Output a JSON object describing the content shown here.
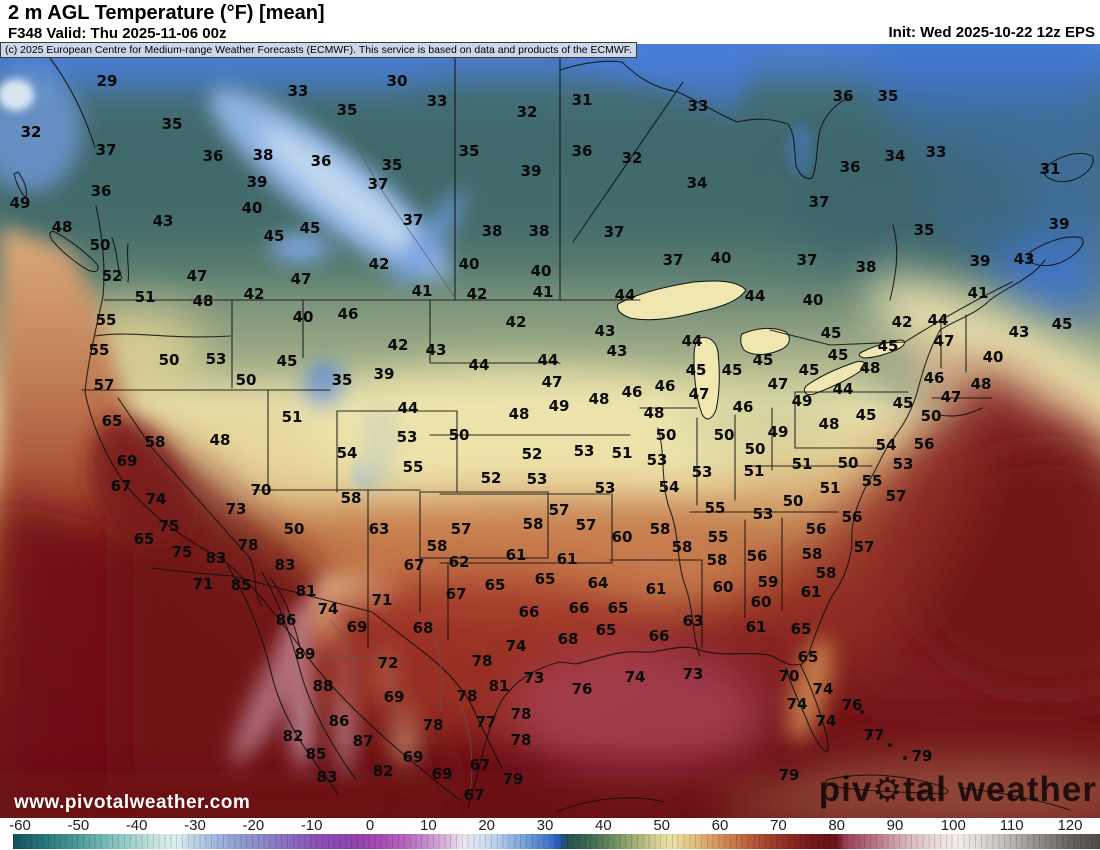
{
  "header": {
    "title": "2 m AGL Temperature (°F) [mean]",
    "valid": "F348 Valid: Thu 2025-11-06 00z",
    "init": "Init: Wed 2025-10-22 12z EPS"
  },
  "copyright_notice": "(c) 2025 European Centre for Medium-range Weather Forecasts (ECMWF). This service is based on data and products of the ECMWF.",
  "watermarks": {
    "bottom_left": "www.pivotalweather.com",
    "brand_prefix": "piv",
    "brand_gear": "⚙",
    "brand_suffix": "tal weather"
  },
  "colorbar": {
    "unit": "°F",
    "ticks": [
      -60,
      -50,
      -40,
      -30,
      -20,
      -10,
      0,
      10,
      20,
      30,
      40,
      50,
      60,
      70,
      80,
      90,
      100,
      110,
      120
    ],
    "stops": [
      [
        -61,
        "#14535c"
      ],
      [
        -55,
        "#2b7d7e"
      ],
      [
        -50,
        "#4d9c9b"
      ],
      [
        -45,
        "#7cbcb8"
      ],
      [
        -40,
        "#a8d5cf"
      ],
      [
        -36,
        "#cfe8e2"
      ],
      [
        -33,
        "#dceef0"
      ],
      [
        -30,
        "#bccfe6"
      ],
      [
        -26,
        "#9fb4dc"
      ],
      [
        -22,
        "#9099d0"
      ],
      [
        -18,
        "#8d85c8"
      ],
      [
        -14,
        "#8b6cc0"
      ],
      [
        -10,
        "#8a57b8"
      ],
      [
        -6,
        "#8b48b2"
      ],
      [
        -2,
        "#9342ae"
      ],
      [
        2,
        "#a84cb4"
      ],
      [
        6,
        "#b666c0"
      ],
      [
        10,
        "#c78fce"
      ],
      [
        13,
        "#dab6dc"
      ],
      [
        16,
        "#e9e6f0"
      ],
      [
        19,
        "#d5dff0"
      ],
      [
        22,
        "#b3cbea"
      ],
      [
        25,
        "#8cafde"
      ],
      [
        28,
        "#6392d4"
      ],
      [
        31,
        "#3e72c8"
      ],
      [
        32.5,
        "#2b55b6"
      ],
      [
        33.5,
        "#27505a"
      ],
      [
        35,
        "#2d5a4c"
      ],
      [
        38,
        "#436f52"
      ],
      [
        41,
        "#64875c"
      ],
      [
        44,
        "#8fa46c"
      ],
      [
        47,
        "#b9bc80"
      ],
      [
        50,
        "#e2d99c"
      ],
      [
        52,
        "#e9dfa4"
      ],
      [
        54,
        "#e7cc8e"
      ],
      [
        57,
        "#dfae74"
      ],
      [
        60,
        "#d28f5a"
      ],
      [
        63,
        "#c47246"
      ],
      [
        66,
        "#b25535"
      ],
      [
        69,
        "#9f3c2a"
      ],
      [
        72,
        "#8c2a22"
      ],
      [
        75,
        "#7a1d1c"
      ],
      [
        78,
        "#6b1317"
      ],
      [
        80,
        "#6e1118"
      ],
      [
        81.5,
        "#9c4156"
      ],
      [
        84,
        "#ab5a6c"
      ],
      [
        87,
        "#bc7a85"
      ],
      [
        90,
        "#cfa0a5"
      ],
      [
        93,
        "#dcbcbd"
      ],
      [
        96,
        "#e8d4d2"
      ],
      [
        99,
        "#f0e5e2"
      ],
      [
        101,
        "#f2ece9"
      ],
      [
        104,
        "#e1dbd8"
      ],
      [
        108,
        "#c9c3c1"
      ],
      [
        112,
        "#a8a3a1"
      ],
      [
        116,
        "#868280"
      ],
      [
        120,
        "#666361"
      ],
      [
        126,
        "#4c4947"
      ]
    ]
  },
  "map": {
    "unit": "°F",
    "labels": [
      [
        29,
        107,
        81
      ],
      [
        33,
        298,
        91
      ],
      [
        35,
        347,
        110
      ],
      [
        32,
        31,
        132
      ],
      [
        35,
        172,
        124
      ],
      [
        37,
        106,
        150
      ],
      [
        36,
        213,
        156
      ],
      [
        38,
        263,
        155
      ],
      [
        36,
        321,
        161
      ],
      [
        36,
        101,
        191
      ],
      [
        39,
        257,
        182
      ],
      [
        40,
        252,
        208
      ],
      [
        49,
        20,
        203
      ],
      [
        43,
        163,
        221
      ],
      [
        45,
        274,
        236
      ],
      [
        45,
        310,
        228
      ],
      [
        48,
        62,
        227
      ],
      [
        50,
        100,
        245
      ],
      [
        52,
        112,
        276
      ],
      [
        47,
        197,
        276
      ],
      [
        47,
        301,
        279
      ],
      [
        42,
        254,
        294
      ],
      [
        51,
        145,
        297
      ],
      [
        48,
        203,
        301
      ],
      [
        30,
        397,
        81
      ],
      [
        33,
        437,
        101
      ],
      [
        31,
        582,
        100
      ],
      [
        32,
        527,
        112
      ],
      [
        33,
        698,
        106
      ],
      [
        35,
        469,
        151
      ],
      [
        36,
        582,
        151
      ],
      [
        32,
        632,
        158
      ],
      [
        35,
        392,
        165
      ],
      [
        39,
        531,
        171
      ],
      [
        34,
        697,
        183
      ],
      [
        37,
        378,
        184
      ],
      [
        37,
        413,
        220
      ],
      [
        38,
        492,
        231
      ],
      [
        38,
        539,
        231
      ],
      [
        37,
        614,
        232
      ],
      [
        37,
        673,
        260
      ],
      [
        40,
        721,
        258
      ],
      [
        42,
        379,
        264
      ],
      [
        40,
        469,
        264
      ],
      [
        40,
        541,
        271
      ],
      [
        41,
        422,
        291
      ],
      [
        42,
        477,
        294
      ],
      [
        41,
        543,
        292
      ],
      [
        44,
        625,
        295
      ],
      [
        36,
        843,
        96
      ],
      [
        35,
        888,
        96
      ],
      [
        33,
        936,
        152
      ],
      [
        34,
        895,
        156
      ],
      [
        31,
        1050,
        169
      ],
      [
        36,
        850,
        167
      ],
      [
        37,
        819,
        202
      ],
      [
        35,
        924,
        230
      ],
      [
        39,
        1059,
        224
      ],
      [
        37,
        807,
        260
      ],
      [
        38,
        866,
        267
      ],
      [
        39,
        980,
        261
      ],
      [
        43,
        1024,
        259
      ],
      [
        41,
        978,
        293
      ],
      [
        44,
        755,
        296
      ],
      [
        40,
        813,
        300
      ],
      [
        55,
        106,
        320
      ],
      [
        40,
        303,
        317
      ],
      [
        46,
        348,
        314
      ],
      [
        55,
        99,
        350
      ],
      [
        50,
        169,
        360
      ],
      [
        53,
        216,
        359
      ],
      [
        45,
        287,
        361
      ],
      [
        50,
        246,
        380
      ],
      [
        35,
        342,
        380
      ],
      [
        57,
        104,
        385
      ],
      [
        51,
        292,
        417
      ],
      [
        65,
        112,
        421
      ],
      [
        58,
        155,
        442
      ],
      [
        48,
        220,
        440
      ],
      [
        54,
        347,
        453
      ],
      [
        69,
        127,
        461
      ],
      [
        67,
        121,
        486
      ],
      [
        74,
        156,
        499
      ],
      [
        70,
        261,
        490
      ],
      [
        58,
        351,
        498
      ],
      [
        73,
        236,
        509
      ],
      [
        75,
        169,
        526
      ],
      [
        50,
        294,
        529
      ],
      [
        65,
        144,
        539
      ],
      [
        78,
        248,
        545
      ],
      [
        75,
        182,
        552
      ],
      [
        83,
        216,
        558
      ],
      [
        83,
        285,
        565
      ],
      [
        42,
        516,
        322
      ],
      [
        43,
        605,
        331
      ],
      [
        42,
        398,
        345
      ],
      [
        43,
        436,
        350
      ],
      [
        43,
        617,
        351
      ],
      [
        44,
        692,
        341
      ],
      [
        44,
        479,
        365
      ],
      [
        44,
        548,
        360
      ],
      [
        39,
        384,
        374
      ],
      [
        45,
        696,
        370
      ],
      [
        45,
        732,
        370
      ],
      [
        47,
        552,
        382
      ],
      [
        46,
        632,
        392
      ],
      [
        46,
        665,
        386
      ],
      [
        48,
        599,
        399
      ],
      [
        47,
        699,
        394
      ],
      [
        44,
        408,
        408
      ],
      [
        49,
        559,
        406
      ],
      [
        48,
        519,
        414
      ],
      [
        48,
        654,
        413
      ],
      [
        53,
        407,
        437
      ],
      [
        50,
        459,
        435
      ],
      [
        50,
        666,
        435
      ],
      [
        50,
        724,
        435
      ],
      [
        52,
        532,
        454
      ],
      [
        53,
        584,
        451
      ],
      [
        51,
        622,
        453
      ],
      [
        55,
        413,
        467
      ],
      [
        53,
        657,
        460
      ],
      [
        52,
        491,
        478
      ],
      [
        53,
        537,
        479
      ],
      [
        53,
        702,
        472
      ],
      [
        53,
        605,
        488
      ],
      [
        54,
        669,
        487
      ],
      [
        57,
        559,
        510
      ],
      [
        55,
        715,
        508
      ],
      [
        63,
        379,
        529
      ],
      [
        57,
        461,
        529
      ],
      [
        58,
        533,
        524
      ],
      [
        57,
        586,
        525
      ],
      [
        60,
        622,
        537
      ],
      [
        58,
        660,
        529
      ],
      [
        55,
        718,
        537
      ],
      [
        58,
        437,
        546
      ],
      [
        58,
        682,
        547
      ],
      [
        61,
        516,
        555
      ],
      [
        61,
        567,
        559
      ],
      [
        62,
        459,
        562
      ],
      [
        67,
        414,
        565
      ],
      [
        58,
        717,
        560
      ],
      [
        42,
        902,
        322
      ],
      [
        44,
        938,
        320
      ],
      [
        45,
        1062,
        324
      ],
      [
        43,
        1019,
        332
      ],
      [
        45,
        831,
        333
      ],
      [
        47,
        944,
        341
      ],
      [
        45,
        888,
        346
      ],
      [
        45,
        838,
        355
      ],
      [
        40,
        993,
        357
      ],
      [
        45,
        763,
        360
      ],
      [
        48,
        870,
        368
      ],
      [
        45,
        809,
        370
      ],
      [
        46,
        934,
        378
      ],
      [
        48,
        981,
        384
      ],
      [
        47,
        778,
        384
      ],
      [
        44,
        843,
        389
      ],
      [
        47,
        951,
        397
      ],
      [
        49,
        802,
        401
      ],
      [
        46,
        743,
        407
      ],
      [
        45,
        903,
        403
      ],
      [
        45,
        866,
        415
      ],
      [
        50,
        931,
        416
      ],
      [
        48,
        829,
        424
      ],
      [
        49,
        778,
        432
      ],
      [
        54,
        886,
        445
      ],
      [
        56,
        924,
        444
      ],
      [
        50,
        755,
        449
      ],
      [
        51,
        802,
        464
      ],
      [
        50,
        848,
        463
      ],
      [
        53,
        903,
        464
      ],
      [
        51,
        754,
        471
      ],
      [
        55,
        872,
        481
      ],
      [
        51,
        830,
        488
      ],
      [
        57,
        896,
        496
      ],
      [
        50,
        793,
        501
      ],
      [
        53,
        763,
        514
      ],
      [
        56,
        852,
        517
      ],
      [
        56,
        816,
        529
      ],
      [
        57,
        864,
        547
      ],
      [
        58,
        812,
        554
      ],
      [
        56,
        757,
        556
      ],
      [
        71,
        203,
        584
      ],
      [
        85,
        241,
        585
      ],
      [
        81,
        306,
        591
      ],
      [
        74,
        328,
        609
      ],
      [
        86,
        286,
        620
      ],
      [
        69,
        357,
        627
      ],
      [
        89,
        305,
        654
      ],
      [
        88,
        323,
        686
      ],
      [
        86,
        339,
        721
      ],
      [
        82,
        293,
        736
      ],
      [
        87,
        363,
        741
      ],
      [
        85,
        316,
        754
      ],
      [
        83,
        327,
        777
      ],
      [
        71,
        382,
        600
      ],
      [
        67,
        456,
        594
      ],
      [
        65,
        495,
        585
      ],
      [
        65,
        545,
        579
      ],
      [
        64,
        598,
        583
      ],
      [
        61,
        656,
        589
      ],
      [
        60,
        723,
        587
      ],
      [
        66,
        529,
        612
      ],
      [
        66,
        579,
        608
      ],
      [
        65,
        618,
        608
      ],
      [
        68,
        423,
        628
      ],
      [
        63,
        693,
        621
      ],
      [
        65,
        606,
        630
      ],
      [
        66,
        659,
        636
      ],
      [
        68,
        568,
        639
      ],
      [
        74,
        516,
        646
      ],
      [
        72,
        388,
        663
      ],
      [
        78,
        482,
        661
      ],
      [
        74,
        635,
        677
      ],
      [
        73,
        693,
        674
      ],
      [
        73,
        534,
        678
      ],
      [
        81,
        499,
        686
      ],
      [
        76,
        582,
        689
      ],
      [
        69,
        394,
        697
      ],
      [
        78,
        467,
        696
      ],
      [
        78,
        433,
        725
      ],
      [
        77,
        486,
        722
      ],
      [
        78,
        521,
        714
      ],
      [
        78,
        521,
        740
      ],
      [
        69,
        413,
        757
      ],
      [
        82,
        383,
        771
      ],
      [
        69,
        442,
        774
      ],
      [
        67,
        480,
        765
      ],
      [
        79,
        513,
        779
      ],
      [
        67,
        474,
        795
      ],
      [
        58,
        826,
        573
      ],
      [
        59,
        768,
        582
      ],
      [
        61,
        811,
        592
      ],
      [
        60,
        761,
        602
      ],
      [
        61,
        756,
        627
      ],
      [
        65,
        801,
        629
      ],
      [
        65,
        808,
        657
      ],
      [
        70,
        789,
        676
      ],
      [
        74,
        823,
        689
      ],
      [
        74,
        797,
        704
      ],
      [
        76,
        852,
        705
      ],
      [
        74,
        826,
        721
      ],
      [
        77,
        874,
        735
      ],
      [
        79,
        922,
        756
      ],
      [
        79,
        789,
        775
      ]
    ]
  }
}
